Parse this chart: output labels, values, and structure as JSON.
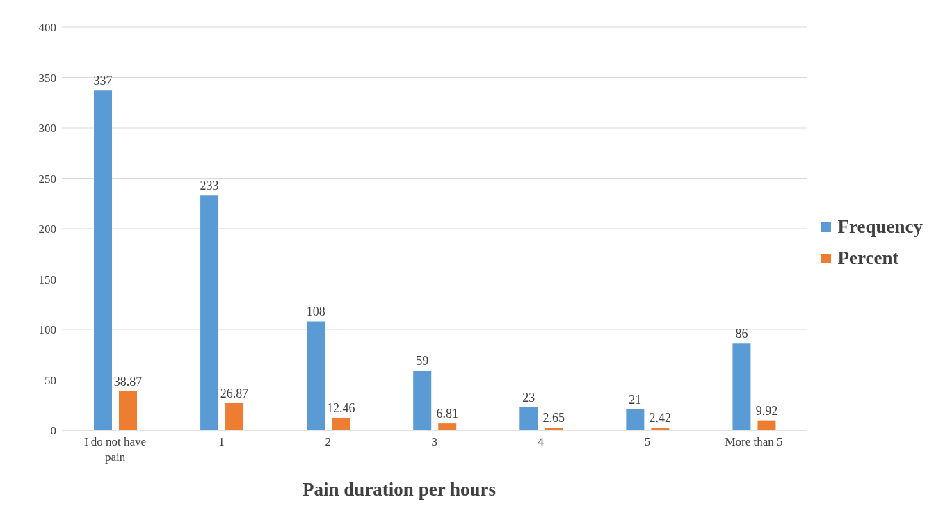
{
  "chart_data": {
    "type": "bar",
    "xlabel": "Pain duration per hours",
    "categories": [
      "I do not have pain",
      "1",
      "2",
      "3",
      "4",
      "5",
      "More than 5"
    ],
    "series": [
      {
        "name": "Frequency",
        "color": "#5b9bd5",
        "values": [
          337,
          233,
          108,
          59,
          23,
          21,
          86
        ]
      },
      {
        "name": "Percent",
        "color": "#ed7d31",
        "values": [
          38.87,
          26.87,
          12.46,
          6.81,
          2.65,
          2.42,
          9.92
        ]
      }
    ],
    "ylim": [
      0,
      400
    ],
    "yticks": [
      0,
      50,
      100,
      150,
      200,
      250,
      300,
      350,
      400
    ],
    "grid": "y",
    "legend": "right",
    "data_labels": true
  }
}
